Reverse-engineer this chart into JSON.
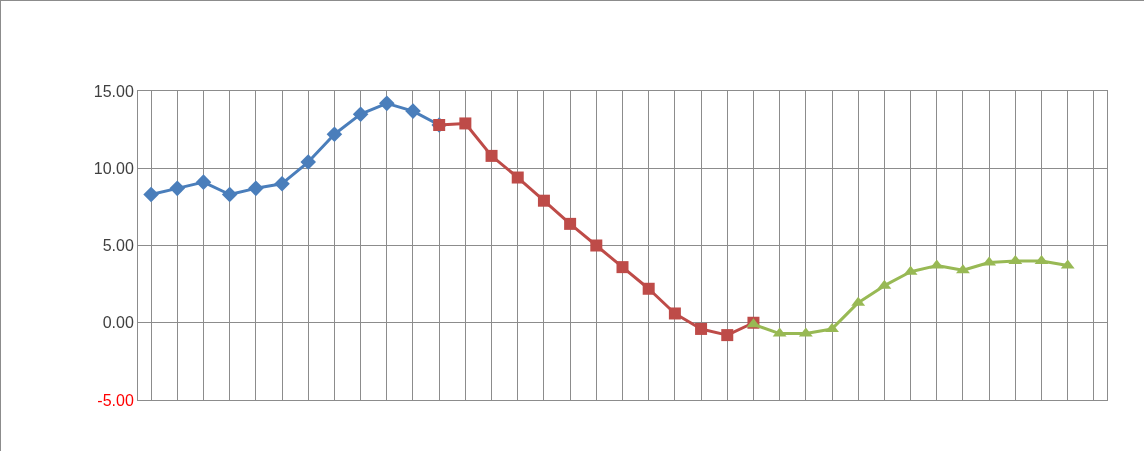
{
  "chart_data": {
    "type": "line",
    "categories": [
      null,
      null,
      null,
      null,
      null,
      null,
      null,
      null,
      null,
      null,
      null,
      null,
      null,
      null,
      null,
      null,
      null,
      null,
      null,
      null,
      null,
      null,
      null,
      null,
      null,
      null,
      null,
      null,
      null,
      null,
      null,
      null,
      null,
      null,
      null,
      null,
      null
    ],
    "series": [
      {
        "color": "#4a7ebb",
        "marker": "diamond",
        "values": [
          8.3,
          8.7,
          9.1,
          8.3,
          8.7,
          9.0,
          10.4,
          12.2,
          13.5,
          14.2,
          13.7,
          12.8,
          null,
          null,
          null,
          null,
          null,
          null,
          null,
          null,
          null,
          null,
          null,
          null,
          null,
          null,
          null,
          null,
          null,
          null,
          null,
          null,
          null,
          null,
          null,
          null,
          null
        ]
      },
      {
        "color": "#be4b48",
        "marker": "square",
        "values": [
          null,
          null,
          null,
          null,
          null,
          null,
          null,
          null,
          null,
          null,
          null,
          12.8,
          12.9,
          10.8,
          9.4,
          7.9,
          6.4,
          5.0,
          3.6,
          2.2,
          0.6,
          -0.4,
          -0.8,
          0.0,
          null,
          null,
          null,
          null,
          null,
          null,
          null,
          null,
          null,
          null,
          null,
          null,
          null
        ]
      },
      {
        "color": "#98b954",
        "marker": "triangle",
        "values": [
          null,
          null,
          null,
          null,
          null,
          null,
          null,
          null,
          null,
          null,
          null,
          null,
          null,
          null,
          null,
          null,
          null,
          null,
          null,
          null,
          null,
          null,
          null,
          -0.1,
          -0.7,
          -0.7,
          -0.4,
          1.3,
          2.4,
          3.3,
          3.7,
          3.4,
          3.9,
          4.0,
          4.0,
          3.7,
          null
        ]
      }
    ],
    "ylim": [
      -5,
      15
    ],
    "yticks": [
      {
        "value": -5,
        "label": "-5.00"
      },
      {
        "value": 0,
        "label": "0.00"
      },
      {
        "value": 5,
        "label": "5.00"
      },
      {
        "value": 10,
        "label": "10.00"
      },
      {
        "value": 15,
        "label": "15.00"
      }
    ],
    "grid": true,
    "tick_labels": "y"
  }
}
